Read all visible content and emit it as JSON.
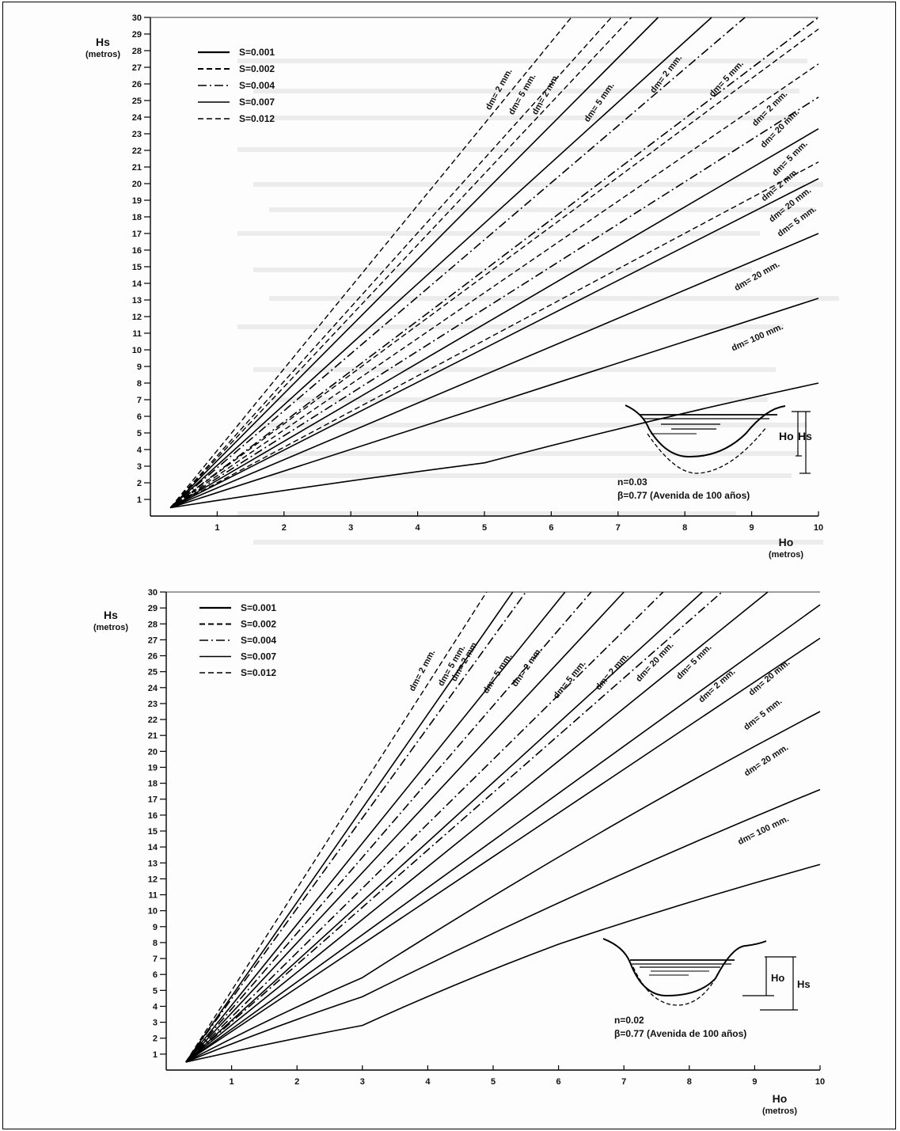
{
  "chart_data": [
    {
      "type": "line",
      "id": "top",
      "xlabel": "Ho",
      "xunit": "(metros)",
      "ylabel": "Hs",
      "yunit": "(metros)",
      "xlim": [
        0,
        10
      ],
      "ylim": [
        0,
        30
      ],
      "x_ticks": [
        1,
        2,
        3,
        4,
        5,
        6,
        7,
        8,
        9,
        10
      ],
      "y_ticks": [
        1,
        2,
        3,
        4,
        5,
        6,
        7,
        8,
        9,
        10,
        11,
        12,
        13,
        14,
        15,
        16,
        17,
        18,
        19,
        20,
        21,
        22,
        23,
        24,
        25,
        26,
        27,
        28,
        29,
        30
      ],
      "legend": [
        {
          "label": "S=0.001",
          "style": "solid-thick"
        },
        {
          "label": "S=0.002",
          "style": "dashed-thick"
        },
        {
          "label": "S=0.004",
          "style": "dashdot"
        },
        {
          "label": "S=0.007",
          "style": "solid"
        },
        {
          "label": "S=0.012",
          "style": "dashed"
        }
      ],
      "series": [
        {
          "style": "dashed",
          "points": [
            [
              0.3,
              0.5
            ],
            [
              6.3,
              30
            ]
          ]
        },
        {
          "style": "dashed",
          "points": [
            [
              0.3,
              0.5
            ],
            [
              6.9,
              30
            ]
          ]
        },
        {
          "style": "dashed",
          "points": [
            [
              0.3,
              0.5
            ],
            [
              7.2,
              30
            ]
          ]
        },
        {
          "style": "solid",
          "points": [
            [
              0.3,
              0.5
            ],
            [
              7.6,
              30
            ]
          ]
        },
        {
          "style": "solid",
          "points": [
            [
              0.3,
              0.5
            ],
            [
              8.4,
              30
            ]
          ]
        },
        {
          "style": "dashdot",
          "points": [
            [
              0.3,
              0.5
            ],
            [
              8.9,
              30
            ]
          ]
        },
        {
          "style": "dashdot",
          "points": [
            [
              0.3,
              0.5
            ],
            [
              10,
              30
            ]
          ]
        },
        {
          "style": "dashed",
          "points": [
            [
              0.3,
              0.5
            ],
            [
              10,
              29.3
            ]
          ]
        },
        {
          "style": "dashed",
          "points": [
            [
              0.3,
              0.5
            ],
            [
              10,
              27.2
            ]
          ]
        },
        {
          "style": "dashdot",
          "points": [
            [
              0.3,
              0.5
            ],
            [
              10,
              25.2
            ]
          ]
        },
        {
          "style": "solid",
          "points": [
            [
              0.3,
              0.5
            ],
            [
              10,
              23.3
            ]
          ]
        },
        {
          "style": "dashed",
          "points": [
            [
              0.3,
              0.5
            ],
            [
              10,
              21.3
            ]
          ]
        },
        {
          "style": "solid",
          "points": [
            [
              0.3,
              0.5
            ],
            [
              10,
              20.3
            ]
          ]
        },
        {
          "style": "solid",
          "points": [
            [
              0.3,
              0.5
            ],
            [
              10,
              17.0
            ]
          ]
        },
        {
          "style": "solid",
          "points": [
            [
              0.3,
              0.5
            ],
            [
              10,
              13.1
            ]
          ]
        },
        {
          "style": "solid",
          "points": [
            [
              0.3,
              0.5
            ],
            [
              5,
              3.2
            ],
            [
              10,
              8.0
            ]
          ]
        }
      ],
      "curve_labels": [
        {
          "text": "dm= 2 mm.",
          "x": 5.25,
          "y": 25.6,
          "angle": -61
        },
        {
          "text": "dm= 5 mm.",
          "x": 5.6,
          "y": 25.3,
          "angle": -60
        },
        {
          "text": "dm= 2 mm.",
          "x": 5.95,
          "y": 25.3,
          "angle": -60
        },
        {
          "text": "dm= 5 mm.",
          "x": 6.75,
          "y": 24.8,
          "angle": -55
        },
        {
          "text": "dm= 2 mm.",
          "x": 7.75,
          "y": 26.5,
          "angle": -52
        },
        {
          "text": "dm= 5 mm.",
          "x": 8.65,
          "y": 26.2,
          "angle": -47
        },
        {
          "text": "dm= 2 mm.",
          "x": 9.3,
          "y": 24.4,
          "angle": -45
        },
        {
          "text": "dm= 20 mm.",
          "x": 9.45,
          "y": 23.2,
          "angle": -45
        },
        {
          "text": "dm= 5 mm.",
          "x": 9.6,
          "y": 21.4,
          "angle": -45
        },
        {
          "text": "dm= 2 mm.",
          "x": 9.45,
          "y": 19.8,
          "angle": -40
        },
        {
          "text": "dm= 20 mm.",
          "x": 9.6,
          "y": 18.6,
          "angle": -38
        },
        {
          "text": "dm= 5 mm.",
          "x": 9.7,
          "y": 17.6,
          "angle": -36
        },
        {
          "text": "dm= 20 mm.",
          "x": 9.1,
          "y": 14.3,
          "angle": -30
        },
        {
          "text": "dm= 100 mm.",
          "x": 9.1,
          "y": 10.6,
          "angle": -24
        }
      ],
      "notes": [
        "n=0.03",
        "β=0.77 (Avenida de 100 años)"
      ],
      "inset_labels": [
        "Ho",
        "Hs"
      ]
    },
    {
      "type": "line",
      "id": "bottom",
      "xlabel": "Ho",
      "xunit": "(metros)",
      "ylabel": "Hs",
      "yunit": "(metros)",
      "xlim": [
        0,
        10
      ],
      "ylim": [
        0,
        30
      ],
      "x_ticks": [
        1,
        2,
        3,
        4,
        5,
        6,
        7,
        8,
        9,
        10
      ],
      "y_ticks": [
        1,
        2,
        3,
        4,
        5,
        6,
        7,
        8,
        9,
        10,
        11,
        12,
        13,
        14,
        15,
        16,
        17,
        18,
        19,
        20,
        21,
        22,
        23,
        24,
        25,
        26,
        27,
        28,
        29,
        30
      ],
      "legend": [
        {
          "label": "S=0.001",
          "style": "solid-thick"
        },
        {
          "label": "S=0.002",
          "style": "dashed-thick"
        },
        {
          "label": "S=0.004",
          "style": "dashdot"
        },
        {
          "label": "S=0.007",
          "style": "solid"
        },
        {
          "label": "S=0.012",
          "style": "dashed"
        }
      ],
      "series": [
        {
          "style": "dashed",
          "points": [
            [
              0.3,
              0.5
            ],
            [
              4.9,
              30
            ]
          ]
        },
        {
          "style": "solid",
          "points": [
            [
              0.3,
              0.5
            ],
            [
              5.3,
              30
            ]
          ]
        },
        {
          "style": "dashdot",
          "points": [
            [
              0.3,
              0.5
            ],
            [
              5.5,
              30
            ]
          ]
        },
        {
          "style": "solid",
          "points": [
            [
              0.3,
              0.5
            ],
            [
              6.1,
              30
            ]
          ]
        },
        {
          "style": "dashdot",
          "points": [
            [
              0.3,
              0.5
            ],
            [
              6.5,
              30
            ]
          ]
        },
        {
          "style": "solid",
          "points": [
            [
              0.3,
              0.5
            ],
            [
              7.0,
              30
            ]
          ]
        },
        {
          "style": "dashdot",
          "points": [
            [
              0.3,
              0.5
            ],
            [
              7.6,
              30
            ]
          ]
        },
        {
          "style": "solid",
          "points": [
            [
              0.3,
              0.5
            ],
            [
              8.2,
              30
            ]
          ]
        },
        {
          "style": "dashdot",
          "points": [
            [
              0.3,
              0.5
            ],
            [
              8.5,
              30
            ]
          ]
        },
        {
          "style": "solid",
          "points": [
            [
              0.3,
              0.5
            ],
            [
              9.2,
              30
            ]
          ]
        },
        {
          "style": "solid",
          "points": [
            [
              0.3,
              0.5
            ],
            [
              10,
              29.2
            ]
          ]
        },
        {
          "style": "solid",
          "points": [
            [
              0.3,
              0.5
            ],
            [
              10,
              27.1
            ]
          ]
        },
        {
          "style": "solid",
          "points": [
            [
              0.3,
              0.5
            ],
            [
              3,
              5.8
            ],
            [
              10,
              22.5
            ]
          ]
        },
        {
          "style": "solid",
          "points": [
            [
              0.3,
              0.5
            ],
            [
              3,
              4.6
            ],
            [
              10,
              17.6
            ]
          ]
        },
        {
          "style": "solid",
          "points": [
            [
              0.3,
              0.5
            ],
            [
              3,
              2.8
            ],
            [
              6,
              7.9
            ],
            [
              10,
              12.9
            ]
          ]
        }
      ],
      "curve_labels": [
        {
          "text": "dm= 2 mm.",
          "x": 3.95,
          "y": 25.0,
          "angle": -62
        },
        {
          "text": "dm= 5 mm.",
          "x": 4.4,
          "y": 25.3,
          "angle": -60
        },
        {
          "text": "dm= 2 mm.",
          "x": 4.6,
          "y": 25.6,
          "angle": -60
        },
        {
          "text": "dm= 5 mm.",
          "x": 5.1,
          "y": 24.8,
          "angle": -57
        },
        {
          "text": "dm= 2 mm.",
          "x": 5.55,
          "y": 25.2,
          "angle": -55
        },
        {
          "text": "dm= 5 mm.",
          "x": 6.2,
          "y": 24.4,
          "angle": -51
        },
        {
          "text": "dm= 2 mm.",
          "x": 6.85,
          "y": 24.9,
          "angle": -49
        },
        {
          "text": "dm= 20 mm.",
          "x": 7.5,
          "y": 25.5,
          "angle": -47
        },
        {
          "text": "dm= 5 mm.",
          "x": 8.1,
          "y": 25.5,
          "angle": -45
        },
        {
          "text": "dm= 2 mm.",
          "x": 8.45,
          "y": 24.0,
          "angle": -42
        },
        {
          "text": "dm= 20 mm.",
          "x": 9.25,
          "y": 24.5,
          "angle": -40
        },
        {
          "text": "dm= 5 mm.",
          "x": 9.15,
          "y": 22.2,
          "angle": -38
        },
        {
          "text": "dm= 20 mm.",
          "x": 9.2,
          "y": 19.3,
          "angle": -33
        },
        {
          "text": "dm= 100 mm.",
          "x": 9.15,
          "y": 14.9,
          "angle": -26
        }
      ],
      "notes": [
        "n=0.02",
        "β=0.77 (Avenida de 100 años)"
      ],
      "inset_labels": [
        "Ho",
        "Hs"
      ]
    }
  ]
}
